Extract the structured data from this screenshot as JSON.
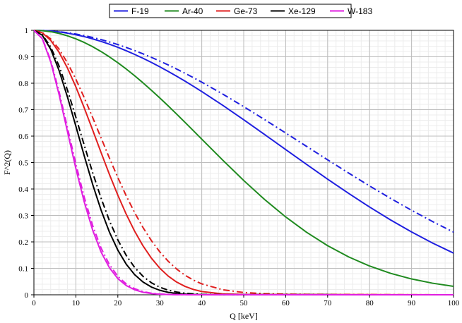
{
  "chart_data": {
    "type": "line",
    "xlabel": "Q [keV]",
    "ylabel": "F^2(Q)",
    "xlim": [
      0,
      100
    ],
    "ylim": [
      0,
      1
    ],
    "x_ticks": [
      "0",
      "10",
      "20",
      "30",
      "40",
      "50",
      "60",
      "70",
      "80",
      "90",
      "100"
    ],
    "y_ticks": [
      "0",
      "0.1",
      "0.2",
      "0.3",
      "0.4",
      "0.5",
      "0.6",
      "0.7",
      "0.8",
      "0.9",
      "1"
    ],
    "grid": true,
    "legend_position": "top-center",
    "legend": [
      {
        "label": "F-19",
        "color": "#1f1fe0"
      },
      {
        "label": "Ar-40",
        "color": "#1f8a1f"
      },
      {
        "label": "Ge-73",
        "color": "#e01f1f"
      },
      {
        "label": "Xe-129",
        "color": "#000000"
      },
      {
        "label": "W-183",
        "color": "#e01fe0"
      }
    ],
    "x": [
      0,
      2,
      4,
      6,
      8,
      10,
      12,
      14,
      16,
      18,
      20,
      22,
      24,
      26,
      28,
      30,
      32,
      34,
      36,
      38,
      40,
      45,
      50,
      55,
      60,
      65,
      70,
      75,
      80,
      85,
      90,
      95,
      100
    ],
    "series": [
      {
        "name": "F-19",
        "style": "solid",
        "color": "#1f1fe0",
        "values": [
          1,
          0.9993,
          0.9973,
          0.9939,
          0.9892,
          0.9833,
          0.9761,
          0.9677,
          0.9582,
          0.9475,
          0.9357,
          0.9229,
          0.909,
          0.8943,
          0.8786,
          0.8621,
          0.8448,
          0.8267,
          0.8079,
          0.7885,
          0.7685,
          0.7164,
          0.6619,
          0.6058,
          0.5491,
          0.4927,
          0.4372,
          0.3834,
          0.3319,
          0.2831,
          0.2376,
          0.1956,
          0.1576
        ]
      },
      {
        "name": "F-19",
        "style": "dashdot",
        "color": "#1f1fe0",
        "values": [
          1,
          0.9994,
          0.9977,
          0.9949,
          0.991,
          0.986,
          0.98,
          0.973,
          0.965,
          0.956,
          0.9461,
          0.9353,
          0.9236,
          0.9111,
          0.8978,
          0.8838,
          0.8691,
          0.8537,
          0.8377,
          0.8211,
          0.804,
          0.759,
          0.7115,
          0.6622,
          0.6118,
          0.561,
          0.5103,
          0.4603,
          0.4116,
          0.3645,
          0.3195,
          0.2769,
          0.237
        ]
      },
      {
        "name": "Ar-40",
        "style": "solid",
        "color": "#1f8a1f",
        "values": [
          1,
          0.9987,
          0.9948,
          0.9883,
          0.9793,
          0.9679,
          0.9541,
          0.938,
          0.9198,
          0.8996,
          0.8775,
          0.8537,
          0.8283,
          0.8015,
          0.7734,
          0.7443,
          0.7143,
          0.6835,
          0.6521,
          0.6204,
          0.5885,
          0.5091,
          0.4322,
          0.3601,
          0.2944,
          0.2361,
          0.1857,
          0.1433,
          0.1087,
          0.0812,
          0.0599,
          0.0438,
          0.0319
        ]
      },
      {
        "name": "Ge-73",
        "style": "solid",
        "color": "#e01f1f",
        "values": [
          1,
          0.9904,
          0.9622,
          0.917,
          0.8573,
          0.7861,
          0.7068,
          0.623,
          0.5381,
          0.4551,
          0.3766,
          0.3047,
          0.2406,
          0.1851,
          0.1385,
          0.1006,
          0.0708,
          0.0483,
          0.0318,
          0.0202,
          0.0123,
          0.0034,
          0.0012,
          0.0009,
          0.001,
          0.0011,
          0.001,
          0.0008,
          0.0006,
          0.0004,
          0.0002,
          0.0001,
          0.0
        ]
      },
      {
        "name": "Ge-73",
        "style": "dashdot",
        "color": "#e01f1f",
        "values": [
          1,
          0.9918,
          0.9677,
          0.9289,
          0.8772,
          0.815,
          0.7451,
          0.6703,
          0.5934,
          0.517,
          0.4433,
          0.3742,
          0.3109,
          0.2543,
          0.2048,
          0.1624,
          0.1268,
          0.0976,
          0.0741,
          0.0556,
          0.0413,
          0.019,
          0.0086,
          0.0042,
          0.0025,
          0.0018,
          0.0015,
          0.0012,
          0.0009,
          0.0006,
          0.0004,
          0.0002,
          0.0001
        ]
      },
      {
        "name": "Xe-129",
        "style": "solid",
        "color": "#000000",
        "values": [
          1,
          0.9815,
          0.9285,
          0.8478,
          0.7478,
          0.6375,
          0.5251,
          0.4176,
          0.3204,
          0.2369,
          0.1688,
          0.1158,
          0.0763,
          0.0483,
          0.0293,
          0.017,
          0.0094,
          0.005,
          0.0025,
          0.0012,
          0.0006,
          0.0003,
          0.0004,
          0.0005,
          0.0004,
          0.0003,
          0.0002,
          0.0001,
          0.0001,
          0.0,
          0.0,
          0.0,
          0.0
        ]
      },
      {
        "name": "Xe-129",
        "style": "dashdot",
        "color": "#000000",
        "values": [
          1,
          0.9838,
          0.9371,
          0.8648,
          0.7738,
          0.6716,
          0.5655,
          0.4618,
          0.3655,
          0.28,
          0.2076,
          0.149,
          0.1035,
          0.0697,
          0.0454,
          0.0287,
          0.0176,
          0.0105,
          0.006,
          0.0033,
          0.0018,
          0.0004,
          0.0003,
          0.0004,
          0.0004,
          0.0003,
          0.0002,
          0.0001,
          0.0001,
          0.0,
          0.0,
          0.0,
          0.0
        ]
      },
      {
        "name": "W-183",
        "style": "solid",
        "color": "#e01fe0",
        "values": [
          1,
          0.9682,
          0.8807,
          0.7566,
          0.6167,
          0.4773,
          0.3507,
          0.2445,
          0.162,
          0.1021,
          0.0612,
          0.0349,
          0.0189,
          0.0097,
          0.0048,
          0.0022,
          0.001,
          0.0004,
          0.0002,
          0.0001,
          0.0001,
          0.0002,
          0.0002,
          0.0001,
          0.0001,
          0.0,
          0.0,
          0.0,
          0.0,
          0.0,
          0.0,
          0.0,
          0.0
        ]
      },
      {
        "name": "W-183",
        "style": "dashdot",
        "color": "#e01fe0",
        "values": [
          1,
          0.97,
          0.887,
          0.768,
          0.632,
          0.495,
          0.369,
          0.262,
          0.177,
          0.114,
          0.07,
          0.041,
          0.023,
          0.012,
          0.0061,
          0.0029,
          0.0013,
          0.0006,
          0.0002,
          0.0001,
          0.0001,
          0.0002,
          0.0002,
          0.0001,
          0.0001,
          0.0,
          0.0,
          0.0,
          0.0,
          0.0,
          0.0,
          0.0,
          0.0
        ]
      }
    ]
  }
}
